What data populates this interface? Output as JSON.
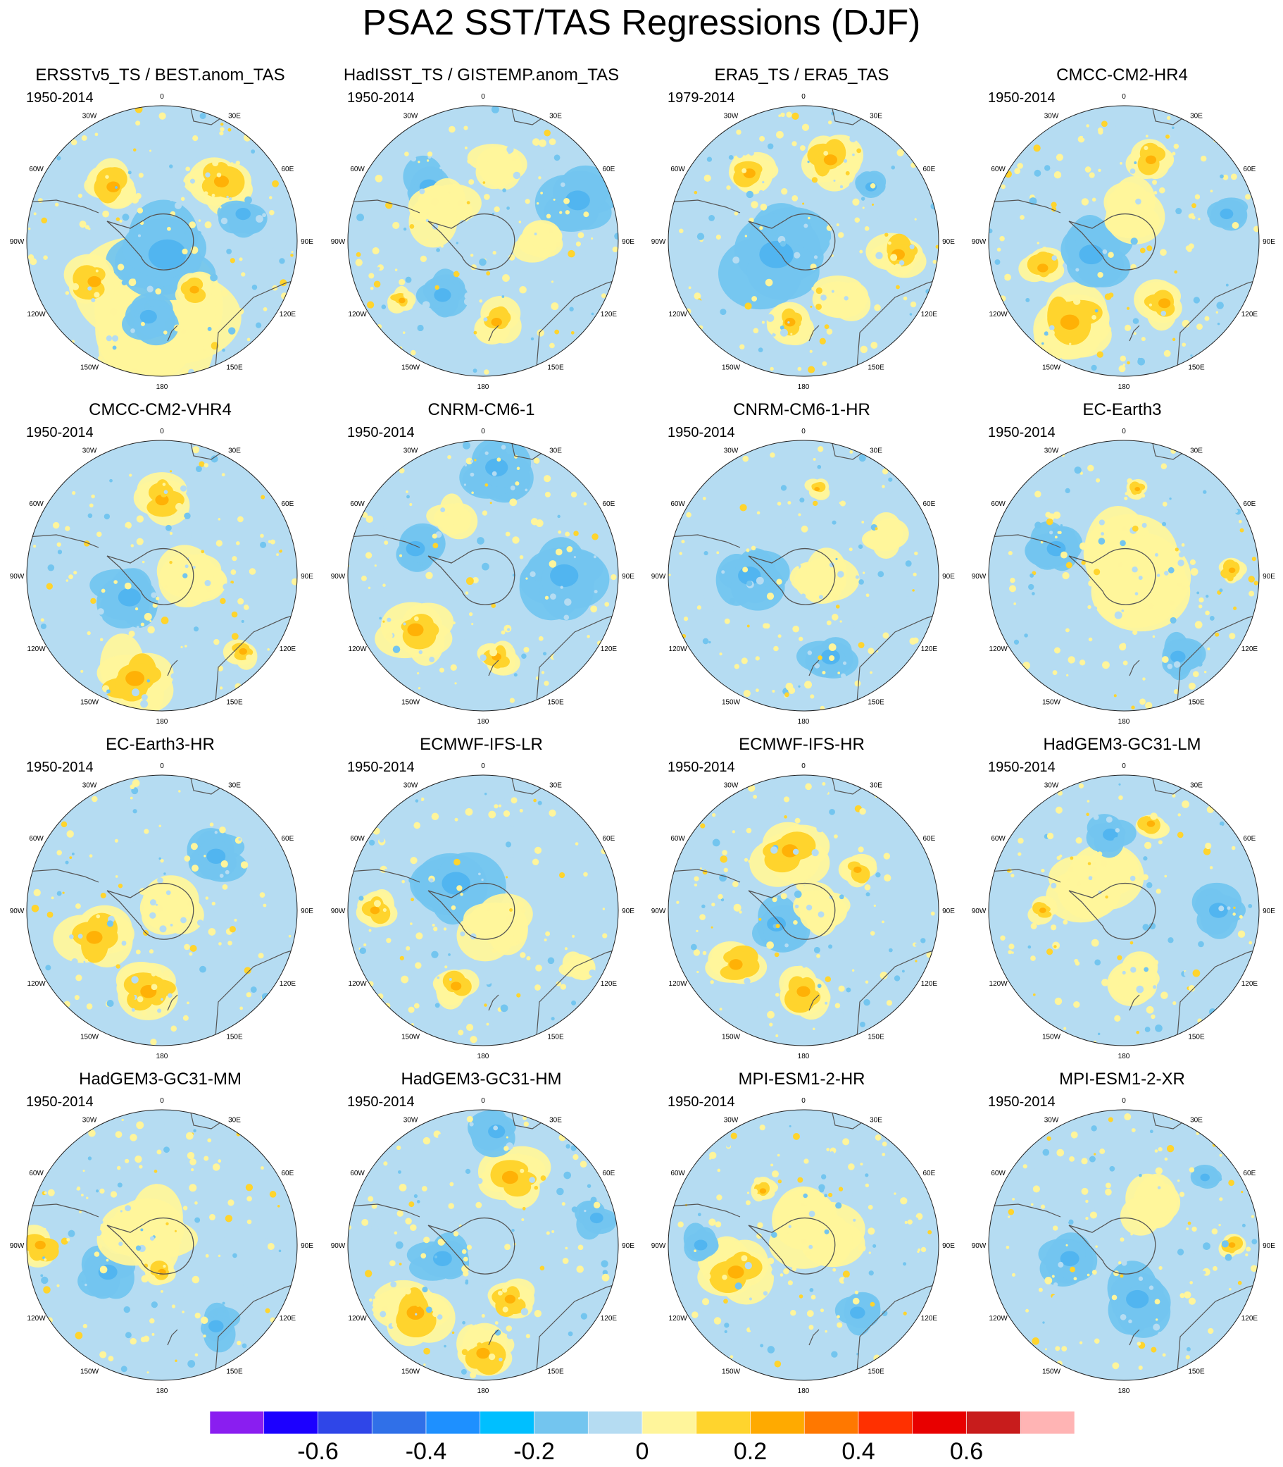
{
  "title": "PSA2 SST/TAS Regressions (DJF)",
  "panels": [
    {
      "name": "ERSSTv5_TS / BEST.anom_TAS",
      "years": "1950-2014"
    },
    {
      "name": "HadISST_TS / GISTEMP.anom_TAS",
      "years": "1950-2014"
    },
    {
      "name": "ERA5_TS / ERA5_TAS",
      "years": "1979-2014"
    },
    {
      "name": "CMCC-CM2-HR4",
      "years": "1950-2014"
    },
    {
      "name": "CMCC-CM2-VHR4",
      "years": "1950-2014"
    },
    {
      "name": "CNRM-CM6-1",
      "years": "1950-2014"
    },
    {
      "name": "CNRM-CM6-1-HR",
      "years": "1950-2014"
    },
    {
      "name": "EC-Earth3",
      "years": "1950-2014"
    },
    {
      "name": "EC-Earth3-HR",
      "years": "1950-2014"
    },
    {
      "name": "ECMWF-IFS-LR",
      "years": "1950-2014"
    },
    {
      "name": "ECMWF-IFS-HR",
      "years": "1950-2014"
    },
    {
      "name": "HadGEM3-GC31-LM",
      "years": "1950-2014"
    },
    {
      "name": "HadGEM3-GC31-MM",
      "years": "1950-2014"
    },
    {
      "name": "HadGEM3-GC31-HM",
      "years": "1950-2014"
    },
    {
      "name": "MPI-ESM1-2-HR",
      "years": "1950-2014"
    },
    {
      "name": "MPI-ESM1-2-XR",
      "years": "1950-2014"
    }
  ],
  "longitude_labels": [
    "0",
    "30E",
    "60E",
    "90E",
    "120E",
    "150E",
    "180",
    "150W",
    "120W",
    "90W",
    "60W",
    "30W"
  ],
  "colorbar": {
    "colors": [
      "#8a1ef0",
      "#1c00ff",
      "#2f46e8",
      "#3070e8",
      "#1e90ff",
      "#00bfff",
      "#73c5ef",
      "#b5dcf2",
      "#fff59b",
      "#ffd42d",
      "#ffaa00",
      "#ff7800",
      "#ff3000",
      "#e80000",
      "#c81c1c",
      "#ffb4b4"
    ],
    "labels": [
      "-0.6",
      "-0.4",
      "-0.2",
      "0",
      "0.2",
      "0.4",
      "0.6"
    ]
  },
  "fields": [
    [
      [
        "y",
        0.45,
        0.78,
        0.28
      ],
      [
        "o",
        0.32,
        0.3,
        0.1
      ],
      [
        "o",
        0.72,
        0.28,
        0.11
      ],
      [
        "b",
        0.52,
        0.55,
        0.2
      ],
      [
        "o",
        0.25,
        0.65,
        0.1
      ],
      [
        "b",
        0.45,
        0.78,
        0.09
      ],
      [
        "b",
        0.8,
        0.4,
        0.08
      ],
      [
        "o",
        0.62,
        0.68,
        0.07
      ]
    ],
    [
      [
        "b",
        0.3,
        0.3,
        0.1
      ],
      [
        "b",
        0.85,
        0.35,
        0.13
      ],
      [
        "o",
        0.55,
        0.8,
        0.08
      ],
      [
        "b",
        0.35,
        0.7,
        0.09
      ],
      [
        "y",
        0.35,
        0.4,
        0.12
      ],
      [
        "y",
        0.55,
        0.22,
        0.1
      ],
      [
        "y",
        0.7,
        0.5,
        0.08
      ],
      [
        "o",
        0.2,
        0.72,
        0.05
      ]
    ],
    [
      [
        "o",
        0.3,
        0.25,
        0.09
      ],
      [
        "o",
        0.6,
        0.2,
        0.1
      ],
      [
        "o",
        0.85,
        0.55,
        0.1
      ],
      [
        "b",
        0.4,
        0.55,
        0.18
      ],
      [
        "o",
        0.45,
        0.8,
        0.08
      ],
      [
        "y",
        0.65,
        0.7,
        0.1
      ],
      [
        "b",
        0.75,
        0.3,
        0.06
      ]
    ],
    [
      [
        "o",
        0.3,
        0.8,
        0.14
      ],
      [
        "o",
        0.2,
        0.6,
        0.08
      ],
      [
        "o",
        0.6,
        0.2,
        0.08
      ],
      [
        "b",
        0.38,
        0.55,
        0.13
      ],
      [
        "b",
        0.88,
        0.4,
        0.07
      ],
      [
        "o",
        0.65,
        0.73,
        0.09
      ],
      [
        "y",
        0.55,
        0.4,
        0.12
      ]
    ],
    [
      [
        "o",
        0.5,
        0.22,
        0.1
      ],
      [
        "o",
        0.4,
        0.88,
        0.14
      ],
      [
        "b",
        0.38,
        0.58,
        0.12
      ],
      [
        "o",
        0.8,
        0.78,
        0.06
      ],
      [
        "y",
        0.6,
        0.5,
        0.12
      ]
    ],
    [
      [
        "b",
        0.55,
        0.1,
        0.12
      ],
      [
        "o",
        0.25,
        0.7,
        0.12
      ],
      [
        "b",
        0.25,
        0.4,
        0.1
      ],
      [
        "o",
        0.55,
        0.8,
        0.07
      ],
      [
        "b",
        0.8,
        0.5,
        0.15
      ],
      [
        "y",
        0.38,
        0.28,
        0.08
      ]
    ],
    [
      [
        "b",
        0.3,
        0.5,
        0.12
      ],
      [
        "b",
        0.6,
        0.8,
        0.1
      ],
      [
        "y",
        0.55,
        0.5,
        0.12
      ],
      [
        "o",
        0.55,
        0.18,
        0.04
      ],
      [
        "y",
        0.8,
        0.35,
        0.08
      ]
    ],
    [
      [
        "y",
        0.5,
        0.5,
        0.22
      ],
      [
        "b",
        0.25,
        0.4,
        0.1
      ],
      [
        "b",
        0.7,
        0.8,
        0.08
      ],
      [
        "o",
        0.9,
        0.48,
        0.05
      ],
      [
        "o",
        0.55,
        0.18,
        0.04
      ]
    ],
    [
      [
        "o",
        0.25,
        0.6,
        0.12
      ],
      [
        "o",
        0.45,
        0.8,
        0.12
      ],
      [
        "b",
        0.7,
        0.3,
        0.1
      ],
      [
        "y",
        0.55,
        0.5,
        0.12
      ]
    ],
    [
      [
        "o",
        0.1,
        0.5,
        0.07
      ],
      [
        "o",
        0.4,
        0.78,
        0.08
      ],
      [
        "b",
        0.4,
        0.4,
        0.15
      ],
      [
        "y",
        0.55,
        0.55,
        0.12
      ],
      [
        "y",
        0.85,
        0.7,
        0.06
      ]
    ],
    [
      [
        "o",
        0.45,
        0.28,
        0.12
      ],
      [
        "o",
        0.25,
        0.7,
        0.1
      ],
      [
        "o",
        0.5,
        0.8,
        0.1
      ],
      [
        "b",
        0.4,
        0.55,
        0.1
      ],
      [
        "y",
        0.55,
        0.5,
        0.1
      ],
      [
        "o",
        0.7,
        0.35,
        0.06
      ]
    ],
    [
      [
        "y",
        0.4,
        0.4,
        0.15
      ],
      [
        "b",
        0.85,
        0.5,
        0.1
      ],
      [
        "b",
        0.45,
        0.22,
        0.08
      ],
      [
        "y",
        0.55,
        0.75,
        0.1
      ],
      [
        "o",
        0.6,
        0.18,
        0.06
      ],
      [
        "o",
        0.2,
        0.5,
        0.05
      ]
    ],
    [
      [
        "o",
        0.05,
        0.5,
        0.08
      ],
      [
        "b",
        0.3,
        0.6,
        0.1
      ],
      [
        "y",
        0.45,
        0.45,
        0.15
      ],
      [
        "o",
        0.5,
        0.6,
        0.06
      ],
      [
        "b",
        0.7,
        0.8,
        0.08
      ]
    ],
    [
      [
        "o",
        0.25,
        0.75,
        0.13
      ],
      [
        "o",
        0.5,
        0.9,
        0.1
      ],
      [
        "o",
        0.6,
        0.25,
        0.12
      ],
      [
        "b",
        0.35,
        0.55,
        0.1
      ],
      [
        "b",
        0.92,
        0.4,
        0.07
      ],
      [
        "b",
        0.55,
        0.08,
        0.09
      ],
      [
        "o",
        0.6,
        0.7,
        0.08
      ]
    ],
    [
      [
        "o",
        0.25,
        0.6,
        0.12
      ],
      [
        "b",
        0.12,
        0.5,
        0.07
      ],
      [
        "y",
        0.55,
        0.45,
        0.15
      ],
      [
        "b",
        0.7,
        0.75,
        0.08
      ],
      [
        "o",
        0.35,
        0.3,
        0.05
      ]
    ],
    [
      [
        "b",
        0.3,
        0.55,
        0.1
      ],
      [
        "b",
        0.55,
        0.7,
        0.12
      ],
      [
        "y",
        0.6,
        0.35,
        0.12
      ],
      [
        "o",
        0.9,
        0.5,
        0.05
      ],
      [
        "b",
        0.8,
        0.25,
        0.05
      ]
    ]
  ]
}
